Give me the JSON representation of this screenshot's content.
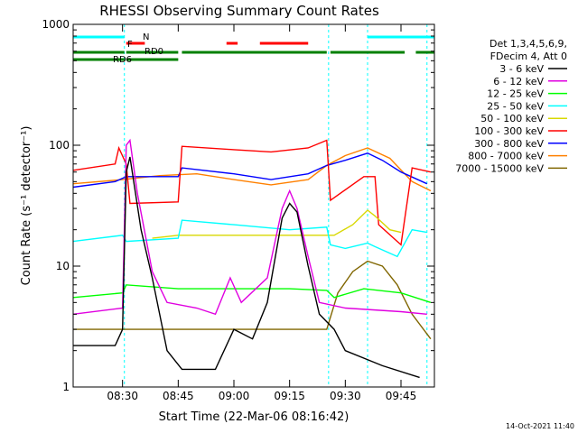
{
  "chart_data": {
    "type": "line",
    "title": "RHESSI Observing Summary Count Rates",
    "xlabel": "Start Time (22-Mar-06 08:16:42)",
    "ylabel": "Count Rate (s⁻¹ detector⁻¹)",
    "y_scale": "log",
    "ylim": [
      1,
      1000
    ],
    "xlim": [
      "08:16:42",
      "09:54:00"
    ],
    "x_ticks": [
      "08:30",
      "08:45",
      "09:00",
      "09:15",
      "09:30",
      "09:45"
    ],
    "y_ticks": [
      "1",
      "10",
      "100",
      "1000"
    ],
    "grid": false,
    "legend_header": [
      "Det 1,3,4,5,6,9,",
      "FDecim 4, Att 0"
    ],
    "footer_date": "14-Oct-2021 11:40",
    "flag_labels": {
      "night": "N",
      "flare": "F",
      "rd0": "RD0",
      "rd6": "RD6"
    },
    "series": [
      {
        "name": "3 - 6 keV",
        "color": "#000000",
        "points": [
          [
            "08:16:42",
            2.2
          ],
          [
            "08:28",
            2.2
          ],
          [
            "08:30",
            3
          ],
          [
            "08:31",
            60
          ],
          [
            "08:32",
            80
          ],
          [
            "08:35",
            20
          ],
          [
            "08:38",
            8
          ],
          [
            "08:42",
            2
          ],
          [
            "08:46",
            1.4
          ],
          [
            "08:55",
            1.4
          ],
          [
            "09:00",
            3
          ],
          [
            "09:05",
            2.5
          ],
          [
            "09:09",
            5
          ],
          [
            "09:13",
            25
          ],
          [
            "09:15",
            33
          ],
          [
            "09:17",
            28
          ],
          [
            "09:20",
            10
          ],
          [
            "09:23",
            4
          ],
          [
            "09:27",
            3
          ],
          [
            "09:30",
            2
          ],
          [
            "09:40",
            1.5
          ],
          [
            "09:50",
            1.2
          ]
        ]
      },
      {
        "name": "6 - 12 keV",
        "color": "#e000e0",
        "points": [
          [
            "08:16:42",
            4
          ],
          [
            "08:30",
            4.5
          ],
          [
            "08:31",
            100
          ],
          [
            "08:32",
            110
          ],
          [
            "08:34",
            40
          ],
          [
            "08:38",
            9
          ],
          [
            "08:42",
            5
          ],
          [
            "08:50",
            4.5
          ],
          [
            "08:55",
            4
          ],
          [
            "08:59",
            8
          ],
          [
            "09:02",
            5
          ],
          [
            "09:09",
            8
          ],
          [
            "09:13",
            30
          ],
          [
            "09:15",
            42
          ],
          [
            "09:17",
            30
          ],
          [
            "09:20",
            12
          ],
          [
            "09:23",
            5
          ],
          [
            "09:30",
            4.5
          ],
          [
            "09:45",
            4.2
          ],
          [
            "09:52",
            4
          ]
        ]
      },
      {
        "name": "12 - 25 keV",
        "color": "#00ff00",
        "points": [
          [
            "08:16:42",
            5.5
          ],
          [
            "08:30",
            6
          ],
          [
            "08:31",
            7
          ],
          [
            "08:45",
            6.5
          ],
          [
            "09:00",
            6.5
          ],
          [
            "09:15",
            6.5
          ],
          [
            "09:25",
            6.3
          ],
          [
            "09:27",
            5.5
          ],
          [
            "09:35",
            6.5
          ],
          [
            "09:45",
            6
          ],
          [
            "09:53",
            5
          ]
        ]
      },
      {
        "name": "25 - 50 keV",
        "color": "#00ffff",
        "points": [
          [
            "08:16:42",
            16
          ],
          [
            "08:30",
            18
          ],
          [
            "08:31",
            16
          ],
          [
            "08:45",
            17
          ],
          [
            "08:46",
            24
          ],
          [
            "09:00",
            22
          ],
          [
            "09:15",
            20
          ],
          [
            "09:25",
            21
          ],
          [
            "09:26",
            15
          ],
          [
            "09:30",
            14
          ],
          [
            "09:36",
            15.5
          ],
          [
            "09:38",
            14.5
          ],
          [
            "09:44",
            12
          ],
          [
            "09:48",
            20
          ],
          [
            "09:52",
            19
          ]
        ]
      },
      {
        "name": "50 - 100 keV",
        "color": "#d8d800",
        "points": [
          [
            "08:38",
            17
          ],
          [
            "08:45",
            18
          ],
          [
            "09:27",
            18
          ],
          [
            "09:32",
            22
          ],
          [
            "09:36",
            29
          ],
          [
            "09:38",
            26
          ],
          [
            "09:42",
            20
          ],
          [
            "09:45",
            19
          ]
        ]
      },
      {
        "name": "100 - 300 keV",
        "color": "#ff0000",
        "points": [
          [
            "08:16:42",
            62
          ],
          [
            "08:28",
            70
          ],
          [
            "08:29",
            95
          ],
          [
            "08:31",
            70
          ],
          [
            "08:32",
            33
          ],
          [
            "08:45",
            34
          ],
          [
            "08:46",
            98
          ],
          [
            "09:00",
            92
          ],
          [
            "09:10",
            88
          ],
          [
            "09:20",
            95
          ],
          [
            "09:25",
            110
          ],
          [
            "09:26",
            35
          ],
          [
            "09:35",
            55
          ],
          [
            "09:38",
            55
          ],
          [
            "09:39",
            22
          ],
          [
            "09:45",
            15
          ],
          [
            "09:48",
            65
          ],
          [
            "09:53",
            60
          ]
        ]
      },
      {
        "name": "300 - 800 keV",
        "color": "#0000ff",
        "points": [
          [
            "08:16:42",
            45
          ],
          [
            "08:28",
            50
          ],
          [
            "08:31",
            55
          ],
          [
            "08:45",
            55
          ],
          [
            "08:46",
            65
          ],
          [
            "09:00",
            58
          ],
          [
            "09:10",
            52
          ],
          [
            "09:20",
            58
          ],
          [
            "09:25",
            68
          ],
          [
            "09:30",
            75
          ],
          [
            "09:36",
            86
          ],
          [
            "09:40",
            75
          ],
          [
            "09:45",
            60
          ],
          [
            "09:52",
            48
          ]
        ]
      },
      {
        "name": "800 - 7000 keV",
        "color": "#ff8000",
        "points": [
          [
            "08:16:42",
            48
          ],
          [
            "08:30",
            52
          ],
          [
            "08:40",
            56
          ],
          [
            "08:50",
            58
          ],
          [
            "09:00",
            52
          ],
          [
            "09:10",
            47
          ],
          [
            "09:20",
            52
          ],
          [
            "09:25",
            68
          ],
          [
            "09:30",
            82
          ],
          [
            "09:36",
            95
          ],
          [
            "09:42",
            78
          ],
          [
            "09:48",
            50
          ],
          [
            "09:53",
            42
          ]
        ]
      },
      {
        "name": "7000 - 15000 keV",
        "color": "#806600",
        "points": [
          [
            "08:16:42",
            3
          ],
          [
            "08:30",
            3
          ],
          [
            "08:45",
            3
          ],
          [
            "09:00",
            3
          ],
          [
            "09:15",
            3
          ],
          [
            "09:25",
            3
          ],
          [
            "09:28",
            6
          ],
          [
            "09:32",
            9
          ],
          [
            "09:36",
            11
          ],
          [
            "09:40",
            10
          ],
          [
            "09:44",
            7
          ],
          [
            "09:48",
            4
          ],
          [
            "09:53",
            2.5
          ]
        ]
      }
    ],
    "flag_bars": [
      {
        "flag": "night",
        "color": "#00ffff",
        "spans": [
          [
            "08:16:42",
            "08:30:30"
          ],
          [
            "09:36:00",
            "09:54:00"
          ]
        ]
      },
      {
        "flag": "flare",
        "color": "#ff0000",
        "spans": [
          [
            "08:31:00",
            "08:36:00"
          ],
          [
            "08:58:00",
            "09:01:00"
          ],
          [
            "09:07:00",
            "09:20:00"
          ]
        ]
      },
      {
        "flag": "rd0",
        "color": "#008000",
        "spans": [
          [
            "08:16:42",
            "08:30:30"
          ],
          [
            "08:31:00",
            "08:45:00"
          ],
          [
            "08:46:00",
            "09:25:00"
          ],
          [
            "09:26:00",
            "09:46:00"
          ],
          [
            "09:49:00",
            "09:54:00"
          ]
        ]
      },
      {
        "flag": "rd6",
        "color": "#008000",
        "spans": [
          [
            "08:16:42",
            "08:30:30"
          ],
          [
            "08:31:00",
            "08:45:00"
          ]
        ]
      }
    ],
    "vertical_markers": {
      "color": "#00ffff",
      "times": [
        "08:30:30",
        "09:25:30",
        "09:36:00",
        "09:52:00"
      ]
    }
  }
}
